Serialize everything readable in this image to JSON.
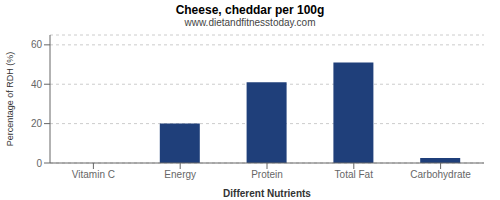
{
  "chart_data": {
    "type": "bar",
    "title": "Cheese, cheddar per 100g",
    "subtitle": "www.dietandfitnesstoday.com",
    "categories": [
      "Vitamin C",
      "Energy",
      "Protein",
      "Total Fat",
      "Carbohydrate"
    ],
    "values": [
      0,
      20,
      41,
      51,
      2.5
    ],
    "color": "#1f3f7a",
    "xlabel": "Different Nutrients",
    "ylabel": "Percentage of RDH (%)",
    "ylim": [
      0,
      65
    ],
    "yticks": [
      0,
      20,
      40,
      60
    ],
    "grid": true
  }
}
